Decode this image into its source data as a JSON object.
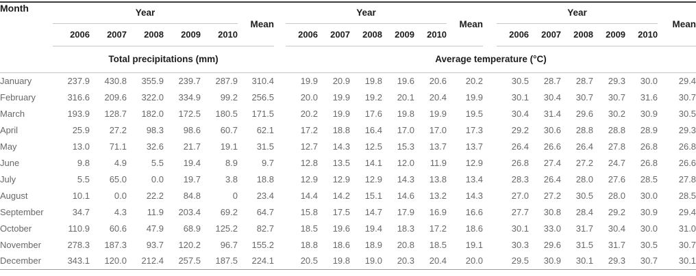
{
  "table": {
    "header": {
      "month_label": "Month",
      "year_label": "Year",
      "mean_label": "Mean",
      "years": [
        "2006",
        "2007",
        "2008",
        "2009",
        "2010"
      ]
    },
    "sections": {
      "precipitation_label": "Total precipitations (mm)",
      "temperature_label": "Average temperature (°C)"
    },
    "rows": [
      {
        "month": "January",
        "precipitation": [
          "237.9",
          "430.8",
          "355.9",
          "239.7",
          "287.9",
          "310.4"
        ],
        "temperature_set1": [
          "19.9",
          "20.9",
          "19.8",
          "19.6",
          "20.6",
          "20.2"
        ],
        "temperature_set2": [
          "30.5",
          "28.7",
          "28.7",
          "29.3",
          "30.0",
          "29.4"
        ]
      },
      {
        "month": "February",
        "precipitation": [
          "316.6",
          "209.6",
          "322.0",
          "334.9",
          "99.2",
          "256.5"
        ],
        "temperature_set1": [
          "20.0",
          "19.9",
          "19.2",
          "20.1",
          "20.4",
          "19.9"
        ],
        "temperature_set2": [
          "30.1",
          "30.4",
          "30.7",
          "30.7",
          "31.6",
          "30.7"
        ]
      },
      {
        "month": "March",
        "precipitation": [
          "193.9",
          "128.7",
          "182.0",
          "172.5",
          "180.5",
          "171.5"
        ],
        "temperature_set1": [
          "20.2",
          "19.9",
          "17.6",
          "19.8",
          "19.9",
          "19.5"
        ],
        "temperature_set2": [
          "30.4",
          "31.4",
          "29.6",
          "30.2",
          "30.9",
          "30.5"
        ]
      },
      {
        "month": "April",
        "precipitation": [
          "25.9",
          "27.2",
          "98.3",
          "98.6",
          "60.7",
          "62.1"
        ],
        "temperature_set1": [
          "17.2",
          "18.8",
          "16.4",
          "17.0",
          "17.0",
          "17.3"
        ],
        "temperature_set2": [
          "29.2",
          "30.6",
          "28.8",
          "28.8",
          "28.9",
          "29.3"
        ]
      },
      {
        "month": "May",
        "precipitation": [
          "13.0",
          "71.1",
          "32.6",
          "21.7",
          "19.1",
          "31.5"
        ],
        "temperature_set1": [
          "12.7",
          "14.3",
          "12.5",
          "15.3",
          "13.7",
          "13.7"
        ],
        "temperature_set2": [
          "26.4",
          "26.6",
          "26.4",
          "27.8",
          "26.8",
          "26.8"
        ]
      },
      {
        "month": "June",
        "precipitation": [
          "9.8",
          "4.9",
          "5.5",
          "19.4",
          "8.9",
          "9.7"
        ],
        "temperature_set1": [
          "12.8",
          "13.5",
          "14.1",
          "12.0",
          "11.9",
          "12.9"
        ],
        "temperature_set2": [
          "26.8",
          "27.4",
          "27.2",
          "24.7",
          "26.8",
          "26.6"
        ]
      },
      {
        "month": "July",
        "precipitation": [
          "5.5",
          "65.0",
          "0.0",
          "19.7",
          "3.8",
          "18.8"
        ],
        "temperature_set1": [
          "12.9",
          "12.9",
          "12.9",
          "14.3",
          "13.8",
          "13.4"
        ],
        "temperature_set2": [
          "28.3",
          "26.4",
          "28.0",
          "27.6",
          "28.5",
          "27.8"
        ]
      },
      {
        "month": "August",
        "precipitation": [
          "10.1",
          "0.0",
          "22.2",
          "84.8",
          "0",
          "23.4"
        ],
        "temperature_set1": [
          "14.4",
          "14.2",
          "15.1",
          "14.6",
          "13.2",
          "14.3"
        ],
        "temperature_set2": [
          "27.0",
          "27.2",
          "30.5",
          "28.0",
          "30.0",
          "28.5"
        ]
      },
      {
        "month": "September",
        "precipitation": [
          "34.7",
          "4.3",
          "11.9",
          "203.4",
          "69.2",
          "64.7"
        ],
        "temperature_set1": [
          "15.8",
          "17.5",
          "14.7",
          "17.9",
          "16.9",
          "16.6"
        ],
        "temperature_set2": [
          "27.7",
          "30.8",
          "28.4",
          "29.2",
          "30.9",
          "29.4"
        ]
      },
      {
        "month": "October",
        "precipitation": [
          "110.9",
          "60.6",
          "47.9",
          "68.9",
          "125.2",
          "82.7"
        ],
        "temperature_set1": [
          "18.5",
          "19.6",
          "19.4",
          "18.3",
          "17.2",
          "18.6"
        ],
        "temperature_set2": [
          "30.1",
          "33.0",
          "31.7",
          "30.4",
          "30.0",
          "31.0"
        ]
      },
      {
        "month": "November",
        "precipitation": [
          "278.3",
          "187.3",
          "93.7",
          "120.2",
          "96.7",
          "155.2"
        ],
        "temperature_set1": [
          "18.8",
          "18.6",
          "18.9",
          "20.8",
          "18.5",
          "19.1"
        ],
        "temperature_set2": [
          "30.3",
          "29.6",
          "31.5",
          "31.7",
          "30.5",
          "30.7"
        ]
      },
      {
        "month": "December",
        "precipitation": [
          "343.1",
          "120.0",
          "212.4",
          "257.5",
          "187.5",
          "224.1"
        ],
        "temperature_set1": [
          "20.5",
          "19.8",
          "19.0",
          "20.3",
          "20.4",
          "20.0"
        ],
        "temperature_set2": [
          "29.5",
          "30.9",
          "30.1",
          "29.3",
          "30.7",
          "30.1"
        ]
      }
    ]
  }
}
